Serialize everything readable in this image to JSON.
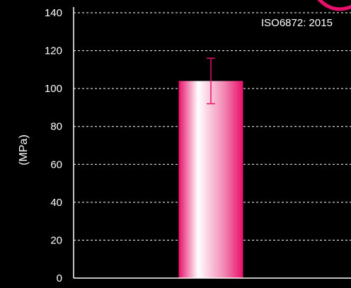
{
  "chart_data": {
    "type": "bar",
    "categories": [
      ""
    ],
    "values": [
      104
    ],
    "error": [
      12
    ],
    "title": "",
    "xlabel": "",
    "ylabel": "(MPa)",
    "ylim": [
      0,
      140
    ],
    "yticks": [
      0,
      20,
      40,
      60,
      80,
      100,
      120,
      140
    ],
    "grid": "horizontal dashed",
    "annotation": "ISO6872: 2015",
    "colors": {
      "background": "#000000",
      "bar_edge": "#e8106a",
      "bar_center": "#ffffff",
      "error_bar": "#e8106a",
      "grid": "#ffffff",
      "axis": "#ffffff",
      "corner_accent": "#e8106a"
    }
  }
}
